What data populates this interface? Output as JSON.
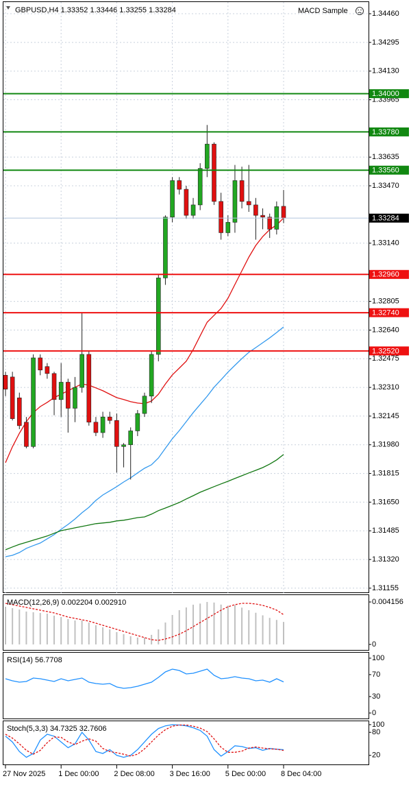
{
  "chart_data": [
    {
      "type": "candlestick",
      "title": "GBPUSD,H4  1.33352 1.33446 1.33255 1.33284",
      "annotation": "MACD Sample",
      "categories": [
        "27 Nov 2025",
        null,
        null,
        null,
        null,
        null,
        null,
        null,
        "1 Dec 00:00",
        null,
        null,
        null,
        null,
        null,
        null,
        null,
        "2 Dec 08:00",
        null,
        null,
        null,
        null,
        null,
        null,
        null,
        "3 Dec 16:00",
        null,
        null,
        null,
        null,
        null,
        null,
        null,
        "5 Dec 00:00",
        null,
        null,
        null,
        null,
        null,
        null,
        null,
        "8 Dec 04:00"
      ],
      "open": [
        1.3238,
        1.3237,
        1.3225,
        1.3211,
        1.3197,
        1.3248,
        1.3243,
        1.3239,
        1.3224,
        1.3234,
        1.3219,
        1.3231,
        1.325,
        1.3211,
        1.3205,
        1.3214,
        1.3212,
        1.3197,
        1.3198,
        1.3206,
        1.3216,
        1.3226,
        1.325,
        1.3294,
        1.3329,
        1.335,
        1.3345,
        1.333,
        1.3336,
        1.3357,
        1.3371,
        1.3338,
        1.332,
        1.3326,
        1.335,
        1.3338,
        1.3336,
        1.333,
        1.3329,
        1.3322,
        1.33352
      ],
      "high": [
        1.324,
        1.324,
        1.3228,
        1.3214,
        1.325,
        1.325,
        1.3245,
        1.324,
        1.3245,
        1.3236,
        1.3237,
        1.3274,
        1.3252,
        1.3214,
        1.3217,
        1.3217,
        1.3216,
        1.3199,
        1.3208,
        1.3218,
        1.3228,
        1.3252,
        1.3296,
        1.333,
        1.3352,
        1.3352,
        1.3347,
        1.334,
        1.336,
        1.3382,
        1.3372,
        1.3343,
        1.333,
        1.3359,
        1.3358,
        1.3359,
        1.334,
        1.3334,
        1.3331,
        1.3338,
        1.33446
      ],
      "low": [
        1.3226,
        1.3212,
        1.3207,
        1.3196,
        1.3196,
        1.3238,
        1.3236,
        1.3215,
        1.3214,
        1.3205,
        1.3211,
        1.3228,
        1.3209,
        1.3203,
        1.3202,
        1.321,
        1.3182,
        1.3185,
        1.3178,
        1.3203,
        1.3214,
        1.3222,
        1.3246,
        1.329,
        1.3326,
        1.3342,
        1.3328,
        1.3328,
        1.3333,
        1.3352,
        1.3336,
        1.3316,
        1.3318,
        1.332,
        1.3334,
        1.3332,
        1.3316,
        1.3322,
        1.3317,
        1.3319,
        1.33255
      ],
      "close": [
        1.323,
        1.3213,
        1.3209,
        1.3197,
        1.3248,
        1.3241,
        1.3239,
        1.3224,
        1.3234,
        1.3219,
        1.3231,
        1.325,
        1.3211,
        1.3205,
        1.3214,
        1.3212,
        1.3197,
        1.3198,
        1.3206,
        1.3216,
        1.3226,
        1.325,
        1.3294,
        1.3329,
        1.335,
        1.3345,
        1.333,
        1.3336,
        1.3357,
        1.3371,
        1.3338,
        1.332,
        1.3326,
        1.335,
        1.3338,
        1.3336,
        1.333,
        1.3329,
        1.3322,
        1.3335,
        1.33284
      ],
      "up_color": "#22a722",
      "down_color": "#e01010",
      "price_line_color": "#b0c4de",
      "series": [
        {
          "color": "#e01010",
          "values": [
            1.31877,
            1.31968,
            1.32046,
            1.32113,
            1.32165,
            1.322,
            1.32224,
            1.32251,
            1.32271,
            1.32291,
            1.32311,
            1.3233,
            1.32323,
            1.32307,
            1.32291,
            1.32271,
            1.32251,
            1.3224,
            1.32228,
            1.3222,
            1.32216,
            1.32232,
            1.32271,
            1.3233,
            1.32382,
            1.32421,
            1.32461,
            1.32528,
            1.32607,
            1.32685,
            1.32725,
            1.32764,
            1.32823,
            1.32902,
            1.32981,
            1.3306,
            1.33127,
            1.33178,
            1.33218,
            1.33245,
            1.33285
          ]
        },
        {
          "color": "#3399ee",
          "values": [
            1.31336,
            1.31344,
            1.3136,
            1.31384,
            1.314,
            1.31415,
            1.31439,
            1.31463,
            1.31494,
            1.31522,
            1.31553,
            1.31589,
            1.3162,
            1.3166,
            1.31691,
            1.31715,
            1.31739,
            1.31766,
            1.3179,
            1.31818,
            1.31845,
            1.31865,
            1.31904,
            1.3196,
            1.32015,
            1.32062,
            1.32113,
            1.32165,
            1.32212,
            1.32259,
            1.32311,
            1.32354,
            1.32398,
            1.32437,
            1.32476,
            1.32512,
            1.32539,
            1.32567,
            1.32595,
            1.32626,
            1.32658
          ]
        },
        {
          "color": "#117711",
          "values": [
            1.31376,
            1.31392,
            1.31407,
            1.31419,
            1.31431,
            1.31443,
            1.31455,
            1.31471,
            1.31486,
            1.31494,
            1.31502,
            1.3151,
            1.31518,
            1.31526,
            1.3153,
            1.31534,
            1.31542,
            1.31546,
            1.31553,
            1.31561,
            1.31565,
            1.31581,
            1.31601,
            1.31616,
            1.31632,
            1.31648,
            1.31668,
            1.31687,
            1.31707,
            1.31723,
            1.31739,
            1.31755,
            1.3177,
            1.31786,
            1.31802,
            1.31818,
            1.31833,
            1.31849,
            1.31869,
            1.31893,
            1.31924
          ]
        }
      ],
      "levels": {
        "values": [
          1.34,
          1.3378,
          1.3356,
          1.3296,
          1.3274,
          1.3252
        ],
        "value_labels": [
          "1.34000",
          "1.33780",
          "1.33560",
          "1.32960",
          "1.32740",
          "1.32520"
        ],
        "colors": [
          "#118811",
          "#118811",
          "#118811",
          "#ee1111",
          "#ee1111",
          "#ee1111"
        ]
      },
      "ylim": [
        1.31127,
        1.34539
      ],
      "yticks": [
        {
          "value": 1.3446,
          "label": "1.34460"
        },
        1.34295,
        {
          "value": 1.3413,
          "label": "1.34130"
        },
        1.33965,
        1.33635,
        {
          "value": 1.3347,
          "label": "1.33470"
        },
        {
          "value": 1.3314,
          "label": "1.33140"
        },
        1.32805,
        {
          "value": 1.3264,
          "label": "1.32640"
        },
        1.32475,
        {
          "value": 1.3231,
          "label": "1.32310"
        },
        1.32145,
        {
          "value": 1.3198,
          "label": "1.31980"
        },
        1.31815,
        {
          "value": 1.3165,
          "label": "1.31650"
        },
        1.31485,
        {
          "value": 1.3132,
          "label": "1.31320"
        },
        1.31155
      ],
      "grid": true
    },
    {
      "type": "bar",
      "title": "MACD(12,26,9) 0.002204 0.002910",
      "series": [
        {
          "kind": "bar",
          "color": "#c0c0c0",
          "values": [
            0.003687,
            0.003553,
            0.003419,
            0.003217,
            0.00315,
            0.003083,
            0.003016,
            0.002815,
            0.002681,
            0.00248,
            0.002346,
            0.002346,
            0.002145,
            0.001877,
            0.001676,
            0.001475,
            0.001207,
            0.001005,
            0.000804,
            0.00067,
            0.00067,
            0.000938,
            0.001475,
            0.002145,
            0.002882,
            0.003352,
            0.00362,
            0.003888,
            0.004,
            0.004156,
            0.0041,
            0.0039,
            0.0038,
            0.00385,
            0.0036,
            0.00335,
            0.0031,
            0.00285,
            0.0026,
            0.0024,
            0.002204
          ]
        },
        {
          "kind": "line",
          "color": "#e01010",
          "dashed": true,
          "values": [
            0.004022,
            0.003888,
            0.003754,
            0.00362,
            0.003486,
            0.003352,
            0.003217,
            0.003083,
            0.002882,
            0.002681,
            0.002547,
            0.002413,
            0.002279,
            0.002078,
            0.001877,
            0.001676,
            0.001475,
            0.001274,
            0.001072,
            0.000871,
            0.00067,
            0.000469,
            0.000402,
            0.000536,
            0.000737,
            0.001005,
            0.001341,
            0.001743,
            0.002145,
            0.002547,
            0.002949,
            0.003352,
            0.003687,
            0.003888,
            0.004022,
            0.004022,
            0.003955,
            0.003821,
            0.00362,
            0.003352,
            0.00291
          ]
        }
      ],
      "ylim": [
        -0.00054,
        0.00483
      ],
      "yticks": [
        0.004156,
        0
      ]
    },
    {
      "type": "line",
      "title": "RSI(14) 56.7708",
      "series": [
        {
          "color": "#1e90ff",
          "values": [
            62.5,
            58.8,
            56.3,
            57.5,
            63.8,
            62.5,
            60,
            57.5,
            62.5,
            58.8,
            61.3,
            63.8,
            56.3,
            53.8,
            52.5,
            53.8,
            47.5,
            45,
            46.3,
            48.8,
            52.5,
            56.3,
            65,
            75,
            80,
            77.5,
            71.3,
            72.5,
            76.3,
            80,
            68.8,
            62.5,
            63.8,
            66.3,
            63.8,
            62.5,
            58.8,
            60,
            56.3,
            62.5,
            56.7708
          ]
        }
      ],
      "ylim": [
        -10,
        110
      ],
      "yticks": [
        100,
        70,
        30,
        0
      ]
    },
    {
      "type": "line",
      "title": "Stoch(5,3,3) 34.7325 32.7606",
      "series": [
        {
          "color": "#1e90ff",
          "values": [
            70,
            55,
            30,
            15,
            25,
            60,
            75,
            70,
            55,
            40,
            50,
            80,
            60,
            30,
            25,
            35,
            20,
            15,
            20,
            35,
            55,
            75,
            90,
            97,
            100,
            99,
            97,
            92,
            85,
            70,
            35,
            18,
            30,
            45,
            43,
            38,
            40,
            33,
            38,
            36,
            34.7325
          ]
        },
        {
          "color": "#e01010",
          "dashed": true,
          "values": [
            75,
            65,
            50,
            33,
            23,
            33,
            53,
            68,
            67,
            55,
            48,
            57,
            63,
            57,
            38,
            30,
            27,
            23,
            18,
            23,
            37,
            55,
            73,
            87,
            96,
            99,
            99,
            96,
            91,
            82,
            63,
            41,
            28,
            28,
            31,
            39,
            42,
            39,
            37,
            36,
            32.7606
          ]
        }
      ],
      "ylim": [
        -3.6,
        108.9
      ],
      "yticks": [
        100,
        80,
        20
      ]
    }
  ]
}
